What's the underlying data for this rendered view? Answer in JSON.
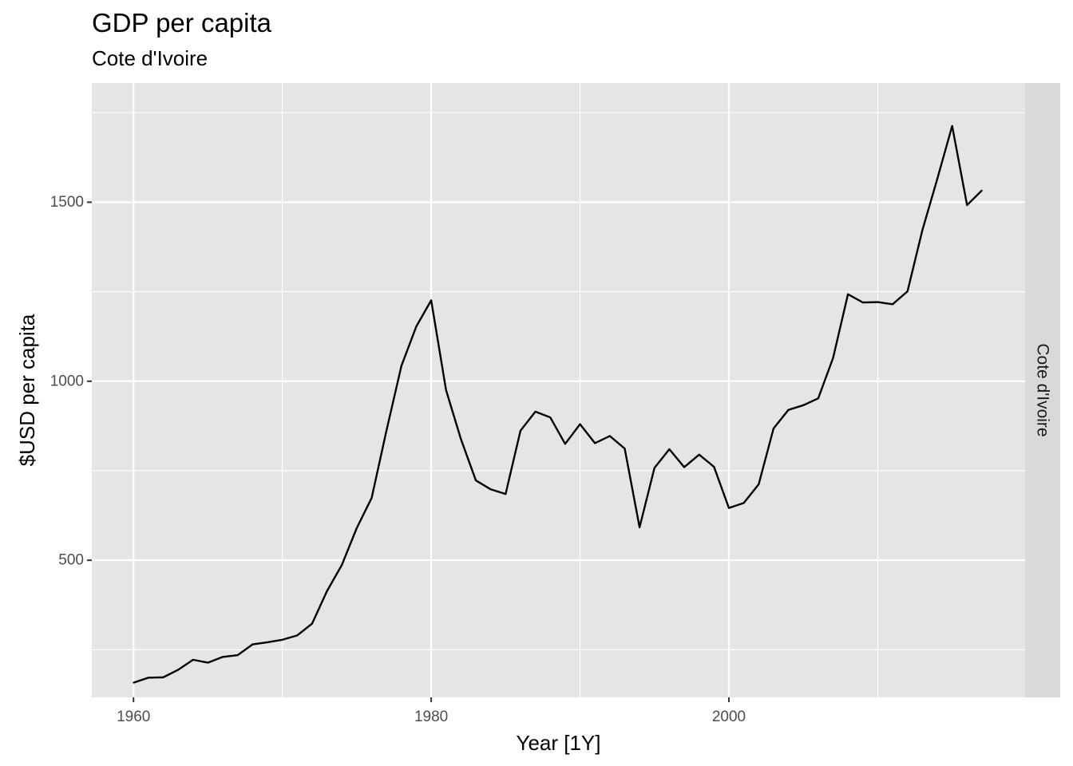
{
  "chart_data": {
    "type": "line",
    "title": "GDP per capita",
    "subtitle": "Cote d'Ivoire",
    "xlabel": "Year [1Y]",
    "ylabel": "$USD per capita",
    "facet_label": "Cote d'Ivoire",
    "xlim": [
      1957.2,
      2019.9
    ],
    "ylim": [
      117,
      1833
    ],
    "x_ticks": [
      1960,
      1980,
      2000
    ],
    "x_minor_ticks": [
      1970,
      1990,
      2010
    ],
    "y_ticks": [
      500,
      1000,
      1500
    ],
    "y_minor_ticks": [
      250,
      750,
      1250,
      1750
    ],
    "grid": true,
    "legend": "none",
    "colors": {
      "panel": "#e5e5e5",
      "grid": "#ffffff",
      "strip": "#d9d9d9",
      "line": "#000000"
    },
    "series": [
      {
        "x": [
          1960,
          1961,
          1962,
          1963,
          1964,
          1965,
          1966,
          1967,
          1968,
          1969,
          1970,
          1971,
          1972,
          1973,
          1974,
          1975,
          1976,
          1977,
          1978,
          1979,
          1980,
          1981,
          1982,
          1983,
          1984,
          1985,
          1986,
          1987,
          1988,
          1989,
          1990,
          1991,
          1992,
          1993,
          1994,
          1995,
          1996,
          1997,
          1998,
          1999,
          2000,
          2001,
          2002,
          2003,
          2004,
          2005,
          2006,
          2007,
          2008,
          2009,
          2010,
          2011,
          2012,
          2013,
          2014,
          2015,
          2016,
          2017
        ],
        "values": [
          158,
          172,
          173,
          194,
          222,
          214,
          230,
          235,
          265,
          271,
          278,
          290,
          323,
          414,
          487,
          590,
          674,
          863,
          1043,
          1153,
          1226,
          975,
          838,
          723,
          698,
          685,
          862,
          915,
          899,
          825,
          880,
          827,
          847,
          812,
          592,
          758,
          810,
          760,
          795,
          761,
          646,
          660,
          712,
          868,
          920,
          933,
          952,
          1065,
          1243,
          1220,
          1221,
          1215,
          1251,
          1422,
          1565,
          1713,
          1492,
          1533
        ]
      }
    ]
  }
}
